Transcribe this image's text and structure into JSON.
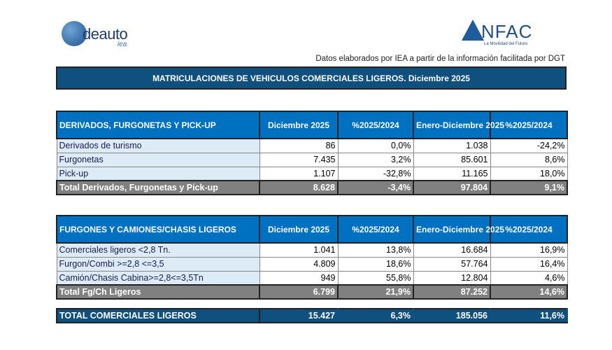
{
  "logos": {
    "ideauto": "deauto",
    "ideauto_sub": "iea",
    "anfac": "NFAC",
    "anfac_sub": "La Movilidad del Futuro"
  },
  "source": "Datos elaborados por IEA a partir de la información facilitada por DGT",
  "title": "MATRICULACIONES DE VEHICULOS COMERCIALES LIGEROS. Diciembre 2025",
  "table1": {
    "headers": [
      "DERIVADOS, FURGONETAS Y PICK-UP",
      "Diciembre 2025",
      "%2025/2024",
      "Enero-Diciembre 2025",
      "%2025/2024"
    ],
    "rows": [
      [
        "Derivados de turismo",
        "86",
        "0,0%",
        "1.038",
        "-24,2%"
      ],
      [
        "Furgonetas",
        "7.435",
        "3,2%",
        "85.601",
        "8,6%"
      ],
      [
        "Pick-up",
        "1.107",
        "-32,8%",
        "11.165",
        "18,0%"
      ]
    ],
    "total": [
      "Total Derivados, Furgonetas y Pick-up",
      "8.628",
      "-3,4%",
      "97.804",
      "9,1%"
    ]
  },
  "table2": {
    "headers": [
      "FURGONES Y CAMIONES/CHASIS LIGEROS",
      "Diciembre 2025",
      "%2025/2024",
      "Enero-Diciembre 2025",
      "%2025/2024"
    ],
    "rows": [
      [
        "Comerciales ligeros <2,8 Tn.",
        "1.041",
        "13,8%",
        "16.684",
        "16,9%"
      ],
      [
        "Furgon/Combi >=2,8 <=3,5",
        "4.809",
        "18,6%",
        "57.764",
        "16,4%"
      ],
      [
        "Camión/Chasis Cabina>=2,8<=3,5Tn",
        "949",
        "55,8%",
        "12.804",
        "4,6%"
      ]
    ],
    "total": [
      "Total Fg/Ch Ligeros",
      "6.799",
      "21,9%",
      "87.252",
      "14,6%"
    ]
  },
  "grand_total": [
    "TOTAL COMERCIALES LIGEROS",
    "15.427",
    "6,3%",
    "185.056",
    "11,6%"
  ]
}
